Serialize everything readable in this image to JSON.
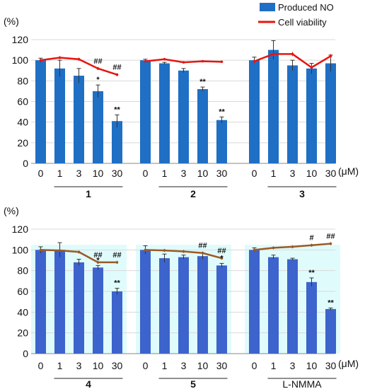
{
  "legend": {
    "bar_label": "Produced NO",
    "line_label": "Cell viability",
    "bar_color": "#1f6fc5",
    "line_color": "#e8150e"
  },
  "chart_data": [
    {
      "type": "bar",
      "ylabel": "(%)",
      "unit": "(μM)",
      "ylim": [
        0,
        120
      ],
      "yticks": [
        "0",
        "20",
        "40",
        "60",
        "80",
        "100",
        "120"
      ],
      "concentrations": [
        "0",
        "1",
        "3",
        "10",
        "30"
      ],
      "groups": [
        {
          "label": "1",
          "shaded": false,
          "bar_color": "#1f6fc5",
          "line_color": "#e8150e",
          "no": [
            100,
            92,
            85,
            70,
            41
          ],
          "no_err": [
            2,
            8,
            7,
            6,
            6
          ],
          "viability": [
            100,
            102.5,
            101,
            92,
            86
          ],
          "viability_err": [
            1.5,
            1.5,
            1.5,
            1.5,
            1.5
          ],
          "bar_marks": [
            "",
            "",
            "",
            "*",
            "**"
          ],
          "line_marks": [
            "",
            "",
            "",
            "##",
            "##"
          ]
        },
        {
          "label": "2",
          "shaded": false,
          "bar_color": "#1f6fc5",
          "line_color": "#e8150e",
          "no": [
            100,
            97,
            90,
            72,
            42
          ],
          "no_err": [
            1,
            1,
            2,
            2,
            3
          ],
          "viability": [
            99,
            101,
            98,
            99,
            98.5
          ],
          "viability_err": [
            1,
            1,
            1,
            1,
            1
          ],
          "bar_marks": [
            "",
            "",
            "",
            "**",
            "**"
          ],
          "line_marks": [
            "",
            "",
            "",
            "",
            ""
          ]
        },
        {
          "label": "3",
          "shaded": false,
          "bar_color": "#1f6fc5",
          "line_color": "#e8150e",
          "no": [
            100,
            110,
            95,
            92,
            97
          ],
          "no_err": [
            3,
            9,
            5,
            5,
            8
          ],
          "viability": [
            99,
            106,
            106,
            93,
            104
          ],
          "viability_err": [
            2,
            2,
            2,
            2,
            2
          ],
          "bar_marks": [
            "",
            "",
            "",
            "",
            ""
          ],
          "line_marks": [
            "",
            "",
            "",
            "",
            ""
          ]
        }
      ]
    },
    {
      "type": "bar",
      "ylabel": "(%)",
      "unit": "(μM)",
      "ylim": [
        0,
        120
      ],
      "yticks": [
        "0",
        "20",
        "40",
        "60",
        "80",
        "100",
        "120"
      ],
      "concentrations": [
        "0",
        "1",
        "3",
        "10",
        "30"
      ],
      "groups": [
        {
          "label": "4",
          "shaded": true,
          "bar_color": "#3c64cc",
          "line_color": "#9a5a26",
          "no": [
            100,
            100,
            88,
            83,
            60
          ],
          "no_err": [
            3,
            7,
            3,
            2,
            3
          ],
          "viability": [
            100,
            99.5,
            98,
            88,
            88
          ],
          "viability_err": [
            1.5,
            1.5,
            1.5,
            1.5,
            1.5
          ],
          "bar_marks": [
            "",
            "",
            "",
            "*",
            "**"
          ],
          "line_marks": [
            "",
            "",
            "",
            "##",
            "##"
          ]
        },
        {
          "label": "5",
          "shaded": true,
          "bar_color": "#3c64cc",
          "line_color": "#9a5a26",
          "no": [
            100,
            92,
            93,
            94,
            85
          ],
          "no_err": [
            4,
            4,
            2,
            3,
            2
          ],
          "viability": [
            100,
            99.5,
            98.5,
            97,
            92
          ],
          "viability_err": [
            1.5,
            1.5,
            1.5,
            1.5,
            1.5
          ],
          "bar_marks": [
            "",
            "",
            "",
            "",
            "*"
          ],
          "line_marks": [
            "",
            "",
            "",
            "##",
            "##"
          ]
        },
        {
          "label": "L-NMMA",
          "shaded": true,
          "bar_color": "#3c64cc",
          "line_color": "#9a5a26",
          "no": [
            100,
            93,
            91,
            69,
            43
          ],
          "no_err": [
            2,
            2,
            1,
            4,
            1
          ],
          "viability": [
            100,
            102,
            103,
            104.5,
            106
          ],
          "viability_err": [
            1.5,
            1.5,
            1.5,
            1.5,
            1.5
          ],
          "bar_marks": [
            "",
            "",
            "",
            "**",
            "**"
          ],
          "line_marks": [
            "",
            "",
            "",
            "#",
            "##"
          ]
        }
      ]
    }
  ]
}
